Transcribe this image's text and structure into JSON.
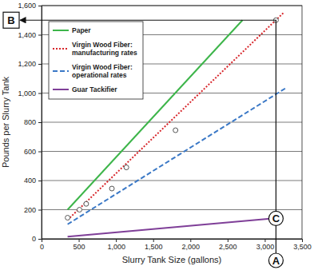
{
  "chart_data": {
    "type": "line",
    "x_label": "Slurry Tank Size (gallons)",
    "y_label": "Pounds per Slurry Tank",
    "xlim": [
      0,
      3500
    ],
    "ylim": [
      0,
      1600
    ],
    "xticks": [
      0,
      500,
      {
        "value": 1000,
        "label": "1,000"
      },
      {
        "value": 1500,
        "label": "1,500"
      },
      {
        "value": 2000,
        "label": "2,000"
      },
      {
        "value": 2500,
        "label": "2,500"
      },
      {
        "value": 3000,
        "label": "3,000"
      },
      {
        "value": 3500,
        "label": "3,500"
      }
    ],
    "yticks": [
      0,
      200,
      400,
      600,
      800,
      {
        "value": 1000,
        "label": "1,000"
      },
      {
        "value": 1200,
        "label": "1,200"
      },
      {
        "value": 1400,
        "label": "1,400"
      },
      {
        "value": 1600,
        "label": "1,600"
      }
    ],
    "grid": true,
    "legend": "upper left",
    "series": [
      {
        "name": "Paper",
        "color": "#3db54a",
        "line_style": "solid",
        "x": [
          350,
          2700
        ],
        "values": [
          200,
          1500
        ]
      },
      {
        "name": "Virgin Wood Fiber: manufacturing rates",
        "color": "#d7262b",
        "line_style": "dotted",
        "x": [
          350,
          3250
        ],
        "values": [
          130,
          1550
        ]
      },
      {
        "name": "Virgin Wood Fiber: operational rates",
        "color": "#3a78c6",
        "line_style": "dashed",
        "x": [
          350,
          3300
        ],
        "values": [
          100,
          1040
        ]
      },
      {
        "name": "Guar Tackifier",
        "color": "#7f3f98",
        "line_style": "solid",
        "x": [
          350,
          3100
        ],
        "values": [
          15,
          140
        ]
      },
      {
        "type": "scatter",
        "marker": "circle",
        "color": "#555555",
        "x": [
          350,
          510,
          600,
          945,
          1140,
          1800,
          3150
        ],
        "values": [
          145,
          200,
          240,
          345,
          490,
          745,
          1500
        ]
      }
    ],
    "annotations": [
      {
        "text": "A",
        "x": 3150
      },
      {
        "text": "B",
        "y": 1500
      },
      {
        "text": "C",
        "x": 3150,
        "y": 140
      }
    ]
  }
}
